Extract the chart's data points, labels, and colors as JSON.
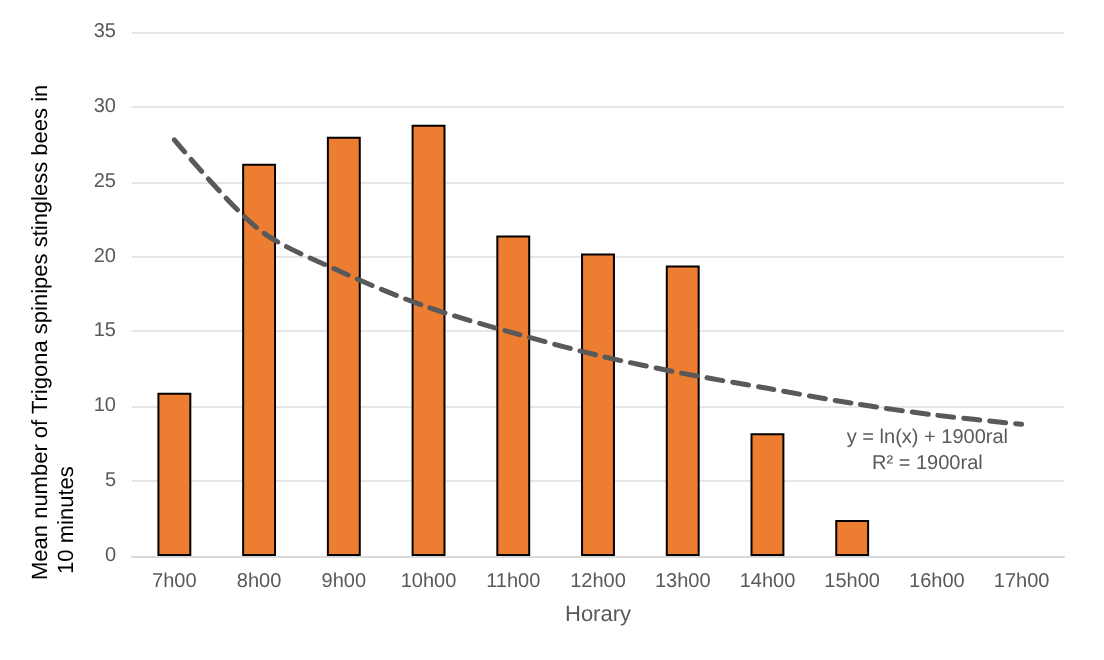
{
  "chart_data": {
    "type": "bar",
    "xlabel": "Horary",
    "ylabel": "Mean number of Trigona spinipes stingless bees in 10 minutes",
    "categories": [
      "7h00",
      "8h00",
      "9h00",
      "10h00",
      "11h00",
      "12h00",
      "13h00",
      "14h00",
      "15h00",
      "16h00",
      "17h00"
    ],
    "series": [
      {
        "color": "#ed7d31",
        "values": [
          10.9,
          26.2,
          28.0,
          28.8,
          21.4,
          20.2,
          19.4,
          8.2,
          2.4,
          null,
          null
        ]
      },
      {
        "type": "line",
        "color": "#595959",
        "line_style": "dashed",
        "marker": "none",
        "x": [
          "7h00",
          "8h00",
          "9h00",
          "10h00",
          "11h00",
          "12h00",
          "13h00",
          "14h00",
          "15h00",
          "16h00",
          "17h00"
        ],
        "values": [
          27.8,
          21.8,
          18.9,
          16.6,
          14.9,
          13.4,
          12.2,
          11.2,
          10.2,
          9.4,
          8.8
        ]
      }
    ],
    "ylim": [
      0,
      35
    ],
    "yticks": [
      0,
      5,
      10,
      15,
      20,
      25,
      30,
      35
    ],
    "grid": "y",
    "annotations": [
      "y = ln(x) + 1900ral",
      "R² = 1900ral"
    ]
  }
}
